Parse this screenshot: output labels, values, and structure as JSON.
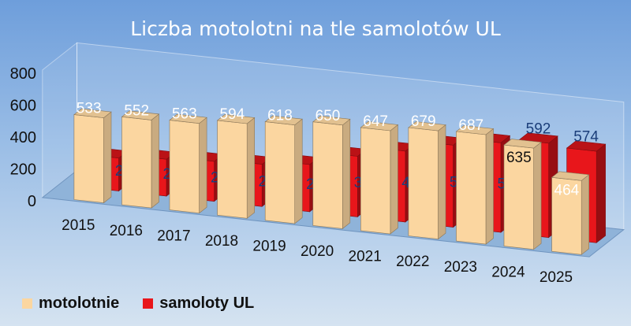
{
  "chart_data": {
    "type": "bar",
    "title": "Liczba motolotni na tle samolotów UL",
    "categories": [
      "2015",
      "2016",
      "2017",
      "2018",
      "2019",
      "2020",
      "2021",
      "2022",
      "2023",
      "2024",
      "2025"
    ],
    "series": [
      {
        "name": "motolotnie",
        "values": [
          533,
          552,
          563,
          594,
          618,
          650,
          647,
          679,
          687,
          635,
          464
        ],
        "color": "#fbd6a0"
      },
      {
        "name": "samoloty UL",
        "values": [
          207,
          232,
          251,
          265,
          296,
          380,
          445,
          515,
          562,
          592,
          574
        ],
        "color": "#e8161b"
      }
    ],
    "y_ticks": [
      "0",
      "200",
      "400",
      "600",
      "800"
    ],
    "ylim": [
      0,
      800
    ],
    "legend_position": "bottom-left",
    "grid": false
  }
}
